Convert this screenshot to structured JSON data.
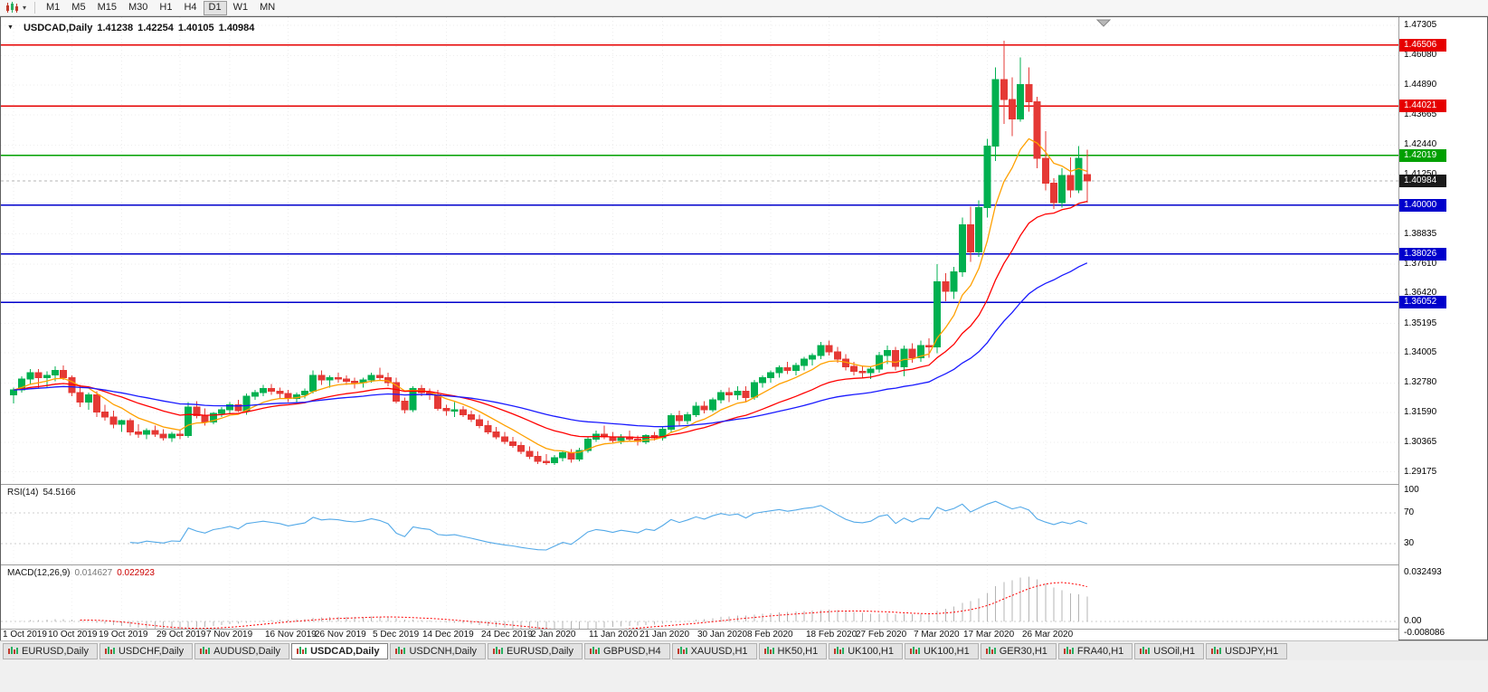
{
  "toolbar": {
    "chart_type_icon": "candlestick-chart-icon",
    "timeframes": [
      "M1",
      "M5",
      "M15",
      "M30",
      "H1",
      "H4",
      "D1",
      "W1",
      "MN"
    ],
    "active_timeframe": "D1"
  },
  "chart_header": {
    "symbol_timeframe": "USDCAD,Daily",
    "open": "1.41238",
    "high": "1.42254",
    "low": "1.40105",
    "close": "1.40984"
  },
  "rsi": {
    "name": "RSI(14)",
    "value": "54.5166",
    "line_color": "#53a9e8",
    "axis_labels": [
      "100",
      "70",
      "30"
    ],
    "levels": [
      70,
      30
    ],
    "range": [
      0,
      100
    ]
  },
  "macd": {
    "name": "MACD(12,26,9)",
    "macd_value": "0.014627",
    "signal_value": "0.022923",
    "axis_labels": [
      "0.032493",
      "0.00",
      "-0.008086"
    ],
    "histogram_color": "#b4b4b4",
    "signal_color": "#ff0000"
  },
  "tabs": {
    "active_index": 3,
    "items": [
      "EURUSD,Daily",
      "USDCHF,Daily",
      "AUDUSD,Daily",
      "USDCAD,Daily",
      "USDCNH,Daily",
      "EURUSD,Daily",
      "GBPUSD,H4",
      "XAUUSD,H1",
      "HK50,H1",
      "UK100,H1",
      "UK100,H1",
      "GER30,H1",
      "FRA40,H1",
      "USOil,H1",
      "USDJPY,H1"
    ]
  },
  "chart_data": {
    "type": "candlestick",
    "symbol": "USDCAD",
    "period": "Daily",
    "ylim": [
      1.2872,
      1.476
    ],
    "price_axis_labels": [
      "1.47305",
      "1.46080",
      "1.44890",
      "1.43665",
      "1.42440",
      "1.41250",
      "1.38835",
      "1.37610",
      "1.36420",
      "1.35195",
      "1.34005",
      "1.32780",
      "1.31590",
      "1.30365",
      "1.29175"
    ],
    "horizontal_lines": [
      {
        "price": 1.46506,
        "label": "1.46506",
        "color": "#e60000",
        "kind": "resistance"
      },
      {
        "price": 1.44021,
        "label": "1.44021",
        "color": "#e60000",
        "kind": "resistance"
      },
      {
        "price": 1.42019,
        "label": "1.42019",
        "color": "#00a000",
        "kind": "level"
      },
      {
        "price": 1.4,
        "label": "1.40000",
        "color": "#0000cc",
        "kind": "support"
      },
      {
        "price": 1.38026,
        "label": "1.38026",
        "color": "#0000cc",
        "kind": "support"
      },
      {
        "price": 1.36052,
        "label": "1.36052",
        "color": "#0000cc",
        "kind": "support"
      }
    ],
    "current_price": {
      "value": 1.40984,
      "label": "1.40984",
      "badge_color": "#1a1a1a"
    },
    "candle_colors": {
      "bull": "#00b050",
      "bear": "#e53935"
    },
    "moving_averages": [
      {
        "period": 8,
        "method": "ema",
        "color": "#ffa000"
      },
      {
        "period": 21,
        "method": "ema",
        "color": "#ff0000"
      },
      {
        "period": 45,
        "method": "ema",
        "color": "#1a1aff"
      }
    ],
    "date_labels": [
      {
        "index": 0,
        "label": "1 Oct 2019"
      },
      {
        "index": 7,
        "label": "10 Oct 2019"
      },
      {
        "index": 13,
        "label": "19 Oct 2019"
      },
      {
        "index": 20,
        "label": "29 Oct 2019"
      },
      {
        "index": 26,
        "label": "7 Nov 2019"
      },
      {
        "index": 33,
        "label": "16 Nov 2019"
      },
      {
        "index": 39,
        "label": "26 Nov 2019"
      },
      {
        "index": 46,
        "label": "5 Dec 2019"
      },
      {
        "index": 52,
        "label": "14 Dec 2019"
      },
      {
        "index": 59,
        "label": "24 Dec 2019"
      },
      {
        "index": 65,
        "label": "2 Jan 2020"
      },
      {
        "index": 72,
        "label": "11 Jan 2020"
      },
      {
        "index": 78,
        "label": "21 Jan 2020"
      },
      {
        "index": 85,
        "label": "30 Jan 2020"
      },
      {
        "index": 91,
        "label": "8 Feb 2020"
      },
      {
        "index": 98,
        "label": "18 Feb 2020"
      },
      {
        "index": 104,
        "label": "27 Feb 2020"
      },
      {
        "index": 111,
        "label": "7 Mar 2020"
      },
      {
        "index": 117,
        "label": "17 Mar 2020"
      },
      {
        "index": 124,
        "label": "26 Mar 2020"
      }
    ],
    "candles": [
      [
        1.323,
        1.326,
        1.3195,
        1.325
      ],
      [
        1.325,
        1.3305,
        1.324,
        1.3295
      ],
      [
        1.3295,
        1.3335,
        1.327,
        1.332
      ],
      [
        1.332,
        1.3335,
        1.3255,
        1.33
      ],
      [
        1.33,
        1.3325,
        1.326,
        1.331
      ],
      [
        1.331,
        1.3345,
        1.3285,
        1.333
      ],
      [
        1.333,
        1.335,
        1.329,
        1.33
      ],
      [
        1.33,
        1.331,
        1.3225,
        1.324
      ],
      [
        1.324,
        1.327,
        1.318,
        1.32
      ],
      [
        1.32,
        1.324,
        1.317,
        1.323
      ],
      [
        1.323,
        1.3245,
        1.314,
        1.316
      ],
      [
        1.316,
        1.319,
        1.3125,
        1.314
      ],
      [
        1.314,
        1.3165,
        1.3095,
        1.311
      ],
      [
        1.311,
        1.313,
        1.308,
        1.3125
      ],
      [
        1.3125,
        1.3135,
        1.3065,
        1.308
      ],
      [
        1.308,
        1.311,
        1.3055,
        1.307
      ],
      [
        1.307,
        1.3095,
        1.305,
        1.3085
      ],
      [
        1.3085,
        1.3105,
        1.306,
        1.307
      ],
      [
        1.307,
        1.309,
        1.3045,
        1.3055
      ],
      [
        1.3055,
        1.308,
        1.304,
        1.307
      ],
      [
        1.307,
        1.309,
        1.305,
        1.3065
      ],
      [
        1.3065,
        1.32,
        1.3055,
        1.318
      ],
      [
        1.318,
        1.3205,
        1.3135,
        1.3145
      ],
      [
        1.3145,
        1.3175,
        1.3105,
        1.312
      ],
      [
        1.312,
        1.316,
        1.311,
        1.3155
      ],
      [
        1.3155,
        1.318,
        1.314,
        1.317
      ],
      [
        1.317,
        1.32,
        1.3155,
        1.319
      ],
      [
        1.319,
        1.321,
        1.316,
        1.3165
      ],
      [
        1.3165,
        1.3235,
        1.315,
        1.3225
      ],
      [
        1.3225,
        1.325,
        1.321,
        1.324
      ],
      [
        1.324,
        1.327,
        1.3225,
        1.3255
      ],
      [
        1.3255,
        1.3275,
        1.323,
        1.3245
      ],
      [
        1.3245,
        1.326,
        1.3215,
        1.3235
      ],
      [
        1.3235,
        1.325,
        1.32,
        1.3215
      ],
      [
        1.3215,
        1.324,
        1.32,
        1.323
      ],
      [
        1.323,
        1.3255,
        1.3215,
        1.3245
      ],
      [
        1.3245,
        1.333,
        1.3235,
        1.331
      ],
      [
        1.331,
        1.333,
        1.327,
        1.329
      ],
      [
        1.329,
        1.331,
        1.326,
        1.33
      ],
      [
        1.33,
        1.332,
        1.328,
        1.3295
      ],
      [
        1.3295,
        1.331,
        1.327,
        1.3285
      ],
      [
        1.3285,
        1.33,
        1.3255,
        1.328
      ],
      [
        1.328,
        1.33,
        1.326,
        1.329
      ],
      [
        1.329,
        1.332,
        1.328,
        1.331
      ],
      [
        1.331,
        1.334,
        1.329,
        1.33
      ],
      [
        1.33,
        1.332,
        1.3265,
        1.328
      ],
      [
        1.328,
        1.33,
        1.3195,
        1.3205
      ],
      [
        1.3205,
        1.322,
        1.3155,
        1.317
      ],
      [
        1.317,
        1.3265,
        1.316,
        1.3255
      ],
      [
        1.3255,
        1.327,
        1.3225,
        1.324
      ],
      [
        1.324,
        1.3255,
        1.321,
        1.323
      ],
      [
        1.323,
        1.325,
        1.3165,
        1.3175
      ],
      [
        1.3175,
        1.319,
        1.3145,
        1.3165
      ],
      [
        1.3165,
        1.32,
        1.314,
        1.317
      ],
      [
        1.317,
        1.3185,
        1.314,
        1.315
      ],
      [
        1.315,
        1.3165,
        1.312,
        1.313
      ],
      [
        1.313,
        1.315,
        1.3095,
        1.3105
      ],
      [
        1.3105,
        1.3125,
        1.307,
        1.308
      ],
      [
        1.308,
        1.31,
        1.305,
        1.306
      ],
      [
        1.306,
        1.308,
        1.303,
        1.304
      ],
      [
        1.304,
        1.306,
        1.3015,
        1.3025
      ],
      [
        1.3025,
        1.304,
        1.299,
        1.3
      ],
      [
        1.3,
        1.302,
        1.297,
        1.298
      ],
      [
        1.298,
        1.3,
        1.295,
        1.296
      ],
      [
        1.296,
        1.299,
        1.2945,
        1.2955
      ],
      [
        1.2955,
        1.2985,
        1.2945,
        1.2975
      ],
      [
        1.2975,
        1.3005,
        1.296,
        1.2995
      ],
      [
        1.2995,
        1.301,
        1.2955,
        1.297
      ],
      [
        1.297,
        1.3015,
        1.296,
        1.3005
      ],
      [
        1.3005,
        1.306,
        1.2995,
        1.305
      ],
      [
        1.305,
        1.3085,
        1.304,
        1.307
      ],
      [
        1.307,
        1.3105,
        1.305,
        1.306
      ],
      [
        1.306,
        1.308,
        1.3035,
        1.3045
      ],
      [
        1.3045,
        1.307,
        1.303,
        1.306
      ],
      [
        1.306,
        1.3085,
        1.304,
        1.305
      ],
      [
        1.305,
        1.3065,
        1.3025,
        1.304
      ],
      [
        1.304,
        1.307,
        1.303,
        1.3065
      ],
      [
        1.3065,
        1.308,
        1.3045,
        1.3055
      ],
      [
        1.3055,
        1.31,
        1.3045,
        1.309
      ],
      [
        1.309,
        1.3155,
        1.308,
        1.3145
      ],
      [
        1.3145,
        1.3165,
        1.3105,
        1.3125
      ],
      [
        1.3125,
        1.316,
        1.311,
        1.315
      ],
      [
        1.315,
        1.32,
        1.314,
        1.3185
      ],
      [
        1.3185,
        1.3205,
        1.3155,
        1.317
      ],
      [
        1.317,
        1.322,
        1.316,
        1.321
      ],
      [
        1.321,
        1.325,
        1.3195,
        1.324
      ],
      [
        1.324,
        1.326,
        1.32,
        1.323
      ],
      [
        1.323,
        1.3265,
        1.321,
        1.3245
      ],
      [
        1.3245,
        1.3265,
        1.3205,
        1.322
      ],
      [
        1.322,
        1.329,
        1.321,
        1.328
      ],
      [
        1.328,
        1.331,
        1.326,
        1.33
      ],
      [
        1.33,
        1.333,
        1.328,
        1.332
      ],
      [
        1.332,
        1.335,
        1.33,
        1.334
      ],
      [
        1.334,
        1.3365,
        1.3315,
        1.333
      ],
      [
        1.333,
        1.336,
        1.331,
        1.335
      ],
      [
        1.335,
        1.3385,
        1.333,
        1.3375
      ],
      [
        1.3375,
        1.34,
        1.335,
        1.339
      ],
      [
        1.339,
        1.3445,
        1.3375,
        1.343
      ],
      [
        1.343,
        1.345,
        1.339,
        1.3405
      ],
      [
        1.3405,
        1.3425,
        1.336,
        1.3375
      ],
      [
        1.3375,
        1.3395,
        1.333,
        1.3345
      ],
      [
        1.3345,
        1.3365,
        1.331,
        1.3325
      ],
      [
        1.3325,
        1.335,
        1.33,
        1.332
      ],
      [
        1.332,
        1.3345,
        1.3295,
        1.3335
      ],
      [
        1.3335,
        1.3405,
        1.332,
        1.339
      ],
      [
        1.339,
        1.343,
        1.3355,
        1.341
      ],
      [
        1.341,
        1.3425,
        1.333,
        1.3345
      ],
      [
        1.3345,
        1.343,
        1.3305,
        1.3415
      ],
      [
        1.3415,
        1.344,
        1.336,
        1.338
      ],
      [
        1.338,
        1.345,
        1.3365,
        1.343
      ],
      [
        1.343,
        1.346,
        1.338,
        1.3425
      ],
      [
        1.3425,
        1.376,
        1.34,
        1.369
      ],
      [
        1.369,
        1.3725,
        1.361,
        1.365
      ],
      [
        1.365,
        1.375,
        1.362,
        1.373
      ],
      [
        1.373,
        1.395,
        1.371,
        1.392
      ],
      [
        1.392,
        1.3995,
        1.377,
        1.381
      ],
      [
        1.381,
        1.402,
        1.379,
        1.399
      ],
      [
        1.399,
        1.427,
        1.395,
        1.424
      ],
      [
        1.424,
        1.456,
        1.418,
        1.451
      ],
      [
        1.451,
        1.4668,
        1.433,
        1.443
      ],
      [
        1.443,
        1.452,
        1.428,
        1.435
      ],
      [
        1.435,
        1.46,
        1.434,
        1.449
      ],
      [
        1.449,
        1.456,
        1.438,
        1.442
      ],
      [
        1.442,
        1.444,
        1.415,
        1.419
      ],
      [
        1.419,
        1.43,
        1.406,
        1.409
      ],
      [
        1.409,
        1.411,
        1.3985,
        1.401
      ],
      [
        1.401,
        1.415,
        1.399,
        1.412
      ],
      [
        1.412,
        1.4195,
        1.403,
        1.4062
      ],
      [
        1.4062,
        1.424,
        1.405,
        1.419
      ],
      [
        1.41238,
        1.42254,
        1.40105,
        1.40984
      ]
    ]
  }
}
